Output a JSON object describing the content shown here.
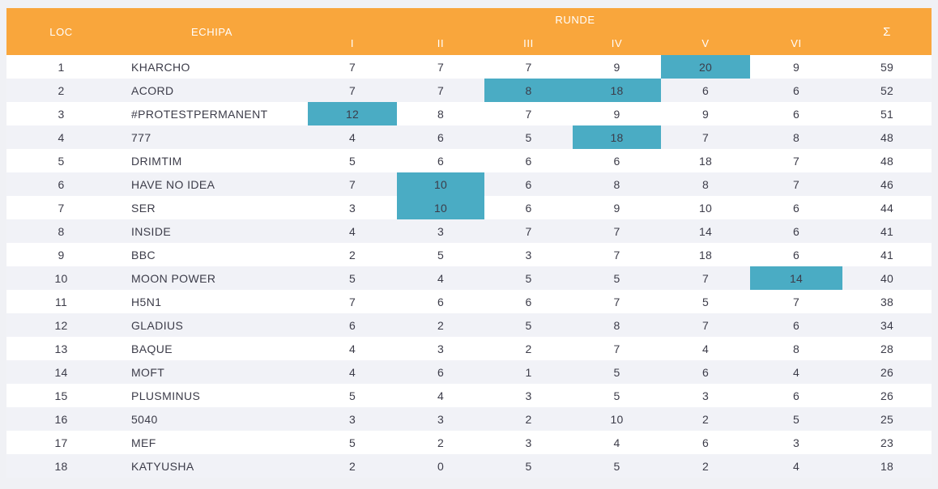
{
  "chart_data": {
    "type": "table",
    "header": {
      "loc": "LOC",
      "echipa": "ECHIPA",
      "runde": "RUNDE",
      "sum": "Σ"
    },
    "round_labels": [
      "I",
      "II",
      "III",
      "IV",
      "V",
      "VI"
    ],
    "rows": [
      {
        "loc": "1",
        "echipa": "KHARCHO",
        "scores": [
          7,
          7,
          7,
          9,
          20,
          9
        ],
        "sum": "59",
        "highlights": [
          4
        ]
      },
      {
        "loc": "2",
        "echipa": "ACORD",
        "scores": [
          7,
          7,
          8,
          18,
          6,
          6
        ],
        "sum": "52",
        "highlights": [
          2,
          3
        ]
      },
      {
        "loc": "3",
        "echipa": "#PROTESTPERMANENT",
        "scores": [
          12,
          8,
          7,
          9,
          9,
          6
        ],
        "sum": "51",
        "highlights": [
          0
        ]
      },
      {
        "loc": "4",
        "echipa": "777",
        "scores": [
          4,
          6,
          5,
          18,
          7,
          8
        ],
        "sum": "48",
        "highlights": [
          3
        ]
      },
      {
        "loc": "5",
        "echipa": "DRIMTIM",
        "scores": [
          5,
          6,
          6,
          6,
          18,
          7
        ],
        "sum": "48",
        "highlights": []
      },
      {
        "loc": "6",
        "echipa": "HAVE NO IDEA",
        "scores": [
          7,
          10,
          6,
          8,
          8,
          7
        ],
        "sum": "46",
        "highlights": [
          1
        ]
      },
      {
        "loc": "7",
        "echipa": "SER",
        "scores": [
          3,
          10,
          6,
          9,
          10,
          6
        ],
        "sum": "44",
        "highlights": [
          1
        ]
      },
      {
        "loc": "8",
        "echipa": "INSIDE",
        "scores": [
          4,
          3,
          7,
          7,
          14,
          6
        ],
        "sum": "41",
        "highlights": []
      },
      {
        "loc": "9",
        "echipa": "BBC",
        "scores": [
          2,
          5,
          3,
          7,
          18,
          6
        ],
        "sum": "41",
        "highlights": []
      },
      {
        "loc": "10",
        "echipa": "MOON POWER",
        "scores": [
          5,
          4,
          5,
          5,
          7,
          14
        ],
        "sum": "40",
        "highlights": [
          5
        ]
      },
      {
        "loc": "11",
        "echipa": "H5N1",
        "scores": [
          7,
          6,
          6,
          7,
          5,
          7
        ],
        "sum": "38",
        "highlights": []
      },
      {
        "loc": "12",
        "echipa": "GLADIUS",
        "scores": [
          6,
          2,
          5,
          8,
          7,
          6
        ],
        "sum": "34",
        "highlights": []
      },
      {
        "loc": "13",
        "echipa": "BAQUE",
        "scores": [
          4,
          3,
          2,
          7,
          4,
          8
        ],
        "sum": "28",
        "highlights": []
      },
      {
        "loc": "14",
        "echipa": "MOFT",
        "scores": [
          4,
          6,
          1,
          5,
          6,
          4
        ],
        "sum": "26",
        "highlights": []
      },
      {
        "loc": "15",
        "echipa": "PLUSMINUS",
        "scores": [
          5,
          4,
          3,
          5,
          3,
          6
        ],
        "sum": "26",
        "highlights": []
      },
      {
        "loc": "16",
        "echipa": "5040",
        "scores": [
          3,
          3,
          2,
          10,
          2,
          5
        ],
        "sum": "25",
        "highlights": []
      },
      {
        "loc": "17",
        "echipa": "MEF",
        "scores": [
          5,
          2,
          3,
          4,
          6,
          3
        ],
        "sum": "23",
        "highlights": []
      },
      {
        "loc": "18",
        "echipa": "KATYUSHA",
        "scores": [
          2,
          0,
          5,
          5,
          2,
          4
        ],
        "sum": "18",
        "highlights": []
      }
    ]
  },
  "colors": {
    "header_bg": "#F9A63C",
    "header_text": "#FFFFFF",
    "highlight_bg": "#4AACC4",
    "row_bg": "#FFFFFF",
    "row_alt_bg": "#F1F2F7",
    "page_bg": "#F0F1F5",
    "body_text": "#3C3C49"
  }
}
